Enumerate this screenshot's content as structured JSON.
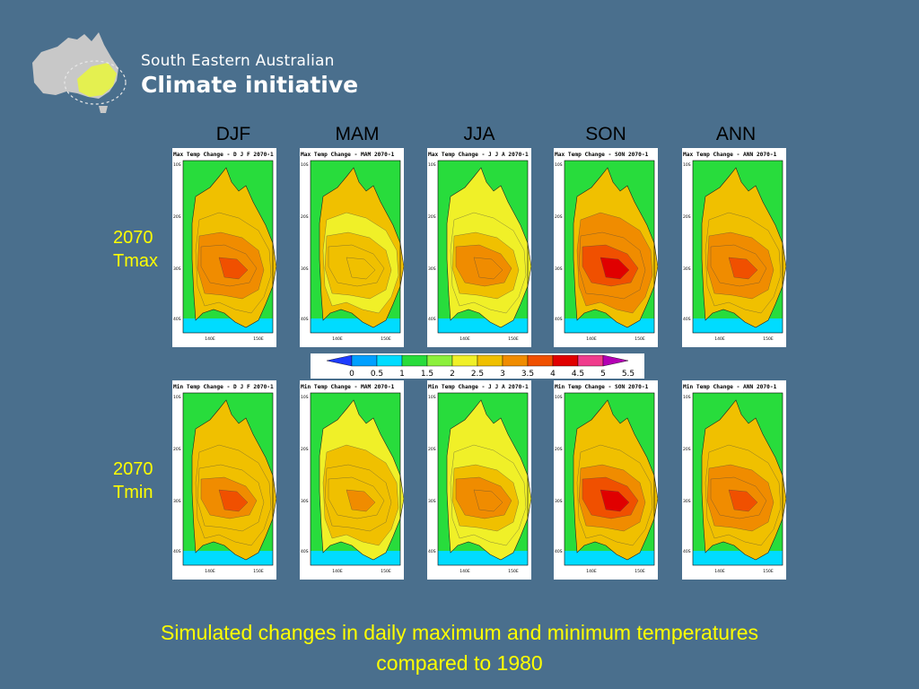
{
  "logo": {
    "line1": "South Eastern Australian",
    "line2": "Climate initiative"
  },
  "seasons": [
    "DJF",
    "MAM",
    "JJA",
    "SON",
    "ANN"
  ],
  "rows": [
    {
      "label_line1": "2070",
      "label_line2": "Tmax",
      "titles": [
        "Max Temp Change - D J F 2070-1",
        "Max Temp Change - MAM 2070-1",
        "Max Temp Change - J J A 2070-1",
        "Max Temp Change - SON 2070-1",
        "Max Temp Change - ANN 2070-1"
      ]
    },
    {
      "label_line1": "2070",
      "label_line2": "Tmin",
      "titles": [
        "Min Temp Change - D J F 2070-1",
        "Min Temp Change - MAM 2070-1",
        "Min Temp Change - J J A 2070-1",
        "Min Temp Change - SON 2070-1",
        "Min Temp Change - ANN 2070-1"
      ]
    }
  ],
  "map_axes": {
    "lat_labels": [
      "10S",
      "20S",
      "30S",
      "40S"
    ],
    "lon_labels": [
      "140E",
      "150E"
    ]
  },
  "colorbar": {
    "ticks": [
      "0",
      "0.5",
      "1",
      "1.5",
      "2",
      "2.5",
      "3",
      "3.5",
      "4",
      "4.5",
      "5",
      "5.5"
    ],
    "colors": [
      "#1e3cff",
      "#00a0ff",
      "#00dcff",
      "#28dc3c",
      "#8cf03c",
      "#f0f028",
      "#f0c000",
      "#f08c00",
      "#f05000",
      "#e00000",
      "#f03c8c",
      "#b400b4"
    ]
  },
  "caption": {
    "line1": "Simulated changes in daily maximum and minimum temperatures",
    "line2": "compared to 1980"
  }
}
